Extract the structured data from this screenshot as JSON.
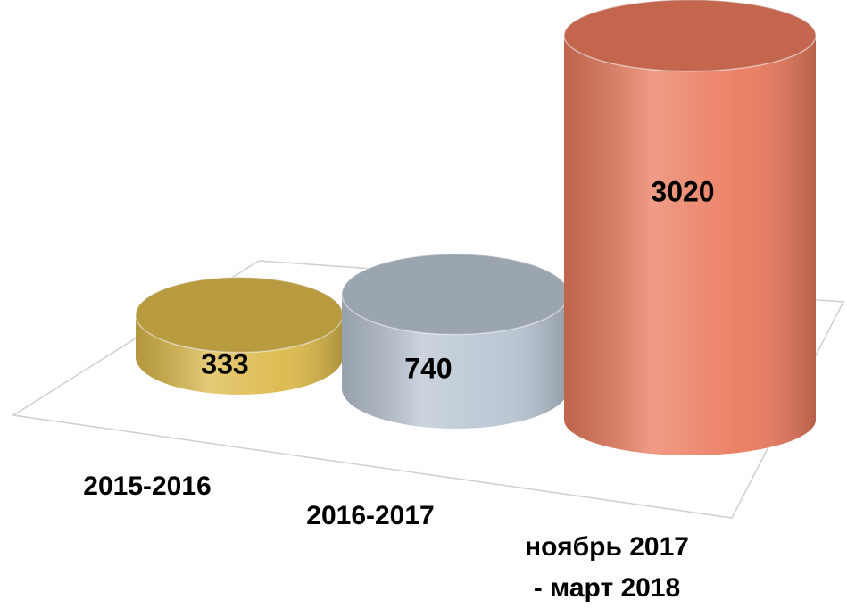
{
  "chart_data": {
    "type": "cylinder",
    "categories": [
      "2015-2016",
      "2016-2017",
      "ноябрь 2017\n- март 2018"
    ],
    "values": [
      333,
      740,
      3020
    ],
    "colors": [
      "#dcb94a",
      "#b9c5d2",
      "#ea7a5d"
    ]
  }
}
